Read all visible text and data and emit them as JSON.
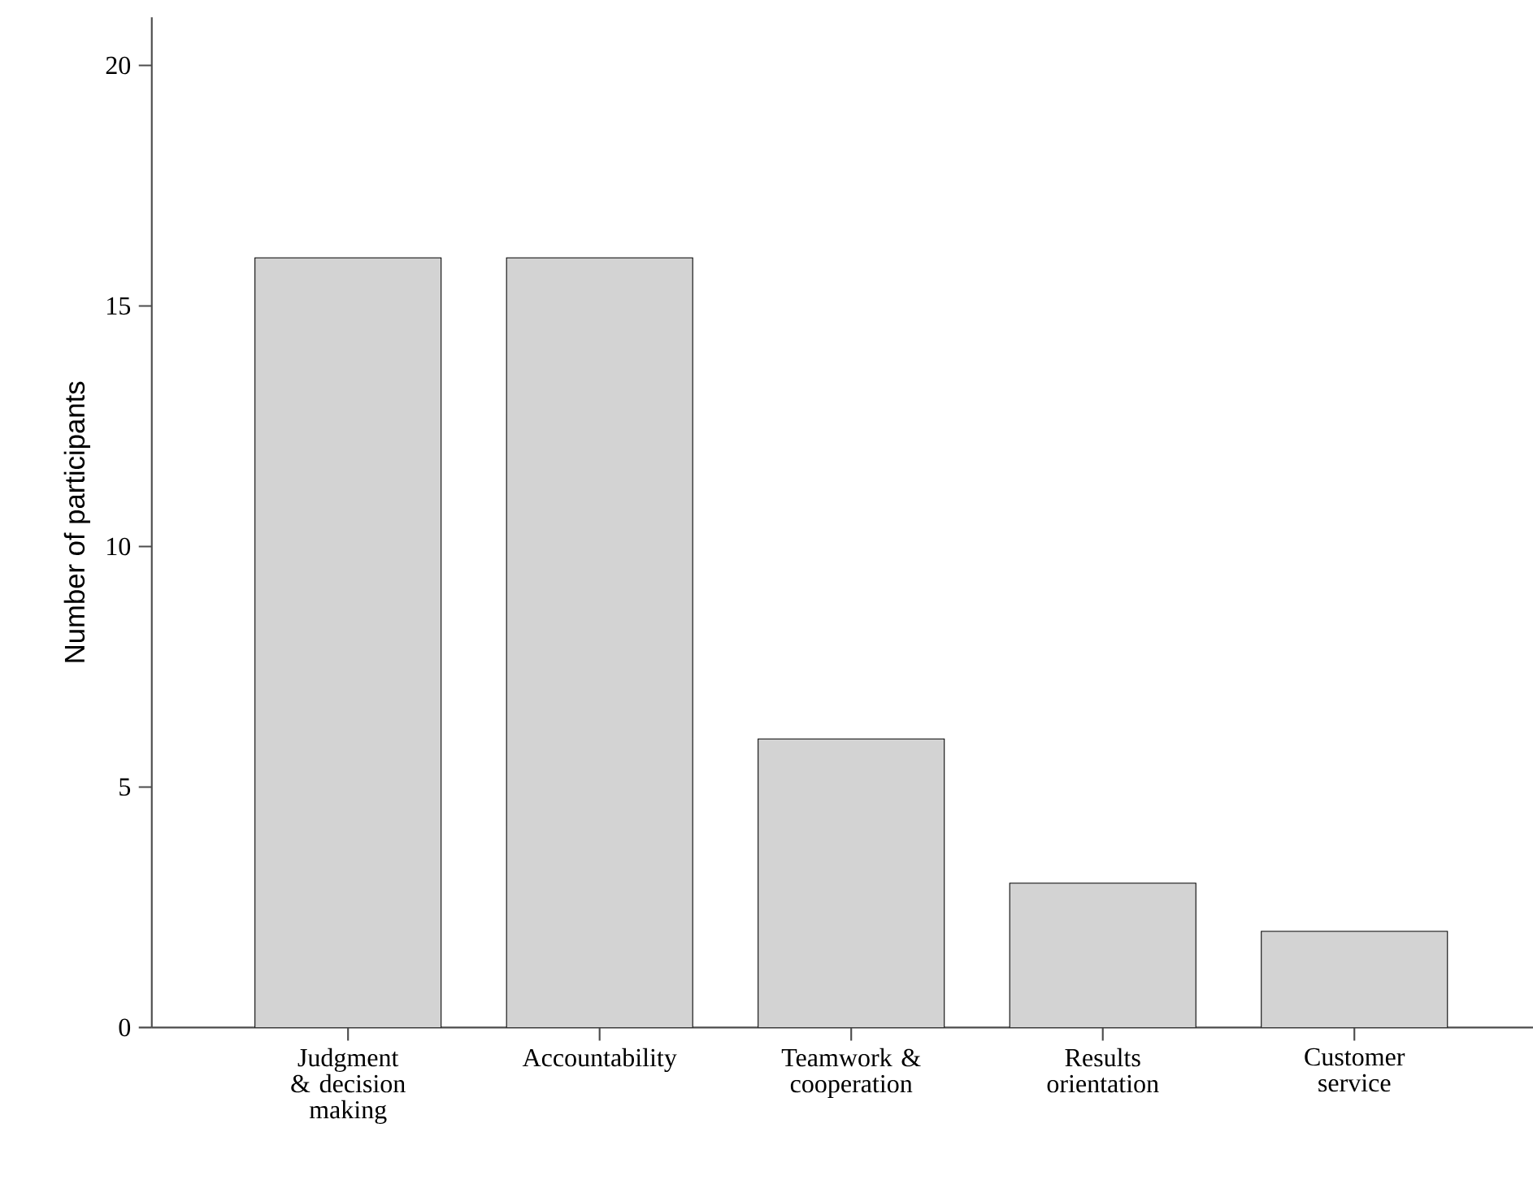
{
  "chart_data": {
    "type": "bar",
    "ylabel": "Number of participants",
    "categories": [
      "Judgment & decision making",
      "Accountability",
      "Teamwork & cooperation",
      "Results orientation",
      "Customer service"
    ],
    "values": [
      16,
      16,
      6,
      3,
      2
    ],
    "color": "#d3d3d3",
    "ylim": [
      0,
      21
    ],
    "yticks": [
      0,
      5,
      10,
      15,
      20
    ]
  }
}
